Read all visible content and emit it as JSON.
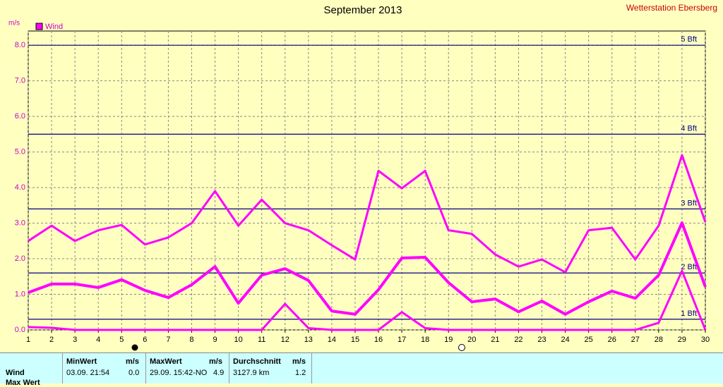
{
  "chart_data": {
    "type": "line",
    "title": "September 2013",
    "station": "Wetterstation Ebersberg",
    "ylabel": "m/s",
    "x": [
      1,
      2,
      3,
      4,
      5,
      6,
      7,
      8,
      9,
      10,
      11,
      12,
      13,
      14,
      15,
      16,
      17,
      18,
      19,
      20,
      21,
      22,
      23,
      24,
      25,
      26,
      27,
      28,
      29,
      30
    ],
    "xlim": [
      1,
      30
    ],
    "xticks": [
      1,
      2,
      3,
      4,
      5,
      6,
      7,
      8,
      9,
      10,
      11,
      12,
      13,
      14,
      15,
      16,
      17,
      18,
      19,
      20,
      21,
      22,
      23,
      24,
      25,
      26,
      27,
      28,
      29,
      30
    ],
    "ylim": [
      0,
      8.4
    ],
    "yticks": [
      {
        "value": 0,
        "label": "0.0"
      },
      {
        "value": 1,
        "label": "1.0"
      },
      {
        "value": 2,
        "label": "2.0"
      },
      {
        "value": 3,
        "label": "3.0"
      },
      {
        "value": 4,
        "label": "4.0"
      },
      {
        "value": 5,
        "label": "5.0"
      },
      {
        "value": 6,
        "label": "6.0"
      },
      {
        "value": 7,
        "label": "7.0"
      },
      {
        "value": 8,
        "label": "8.0"
      }
    ],
    "grid": true,
    "reference_lines": [
      {
        "value": 0.3,
        "label": "1 Bft"
      },
      {
        "value": 1.6,
        "label": "2 Bft"
      },
      {
        "value": 3.4,
        "label": "3 Bft"
      },
      {
        "value": 5.5,
        "label": "4 Bft"
      },
      {
        "value": 8.0,
        "label": "5 Bft"
      }
    ],
    "reference_color": "#000080",
    "series": [
      {
        "name": "Wind",
        "color": "#ff00ff",
        "width": 4,
        "values": [
          1.05,
          1.29,
          1.29,
          1.19,
          1.41,
          1.11,
          0.91,
          1.27,
          1.78,
          0.75,
          1.54,
          1.72,
          1.39,
          0.53,
          0.44,
          1.13,
          2.02,
          2.04,
          1.33,
          0.79,
          0.87,
          0.51,
          0.81,
          0.44,
          0.79,
          1.09,
          0.89,
          1.54,
          3.01,
          1.21
        ]
      },
      {
        "color": "#ff00ff",
        "width": 3,
        "values": [
          2.5,
          2.93,
          2.5,
          2.8,
          2.95,
          2.4,
          2.6,
          3.0,
          3.9,
          2.93,
          3.66,
          3.0,
          2.8,
          2.38,
          1.98,
          4.47,
          3.98,
          4.47,
          2.8,
          2.7,
          2.12,
          1.78,
          1.98,
          1.62,
          2.8,
          2.87,
          1.98,
          2.93,
          4.91,
          3.03
        ]
      },
      {
        "color": "#ff00ff",
        "width": 3,
        "values": [
          0.08,
          0.06,
          0,
          0,
          0,
          0,
          0,
          0,
          0,
          0,
          0,
          0.73,
          0.05,
          0,
          0,
          0,
          0.5,
          0.05,
          0,
          0,
          0,
          0,
          0,
          0,
          0,
          0,
          0,
          0.2,
          1.66,
          0
        ]
      }
    ]
  },
  "table": {
    "header": [
      "MinWert",
      "m/s",
      "MaxWert",
      "m/s",
      "Durchschnitt",
      "m/s"
    ],
    "rows": [
      [
        "Wind",
        "03.09.  21:54",
        "0.0",
        "29.09.  15:42-NO",
        "4.9",
        "3127.9 km",
        "1.2"
      ],
      [
        "Max Wert"
      ]
    ]
  }
}
